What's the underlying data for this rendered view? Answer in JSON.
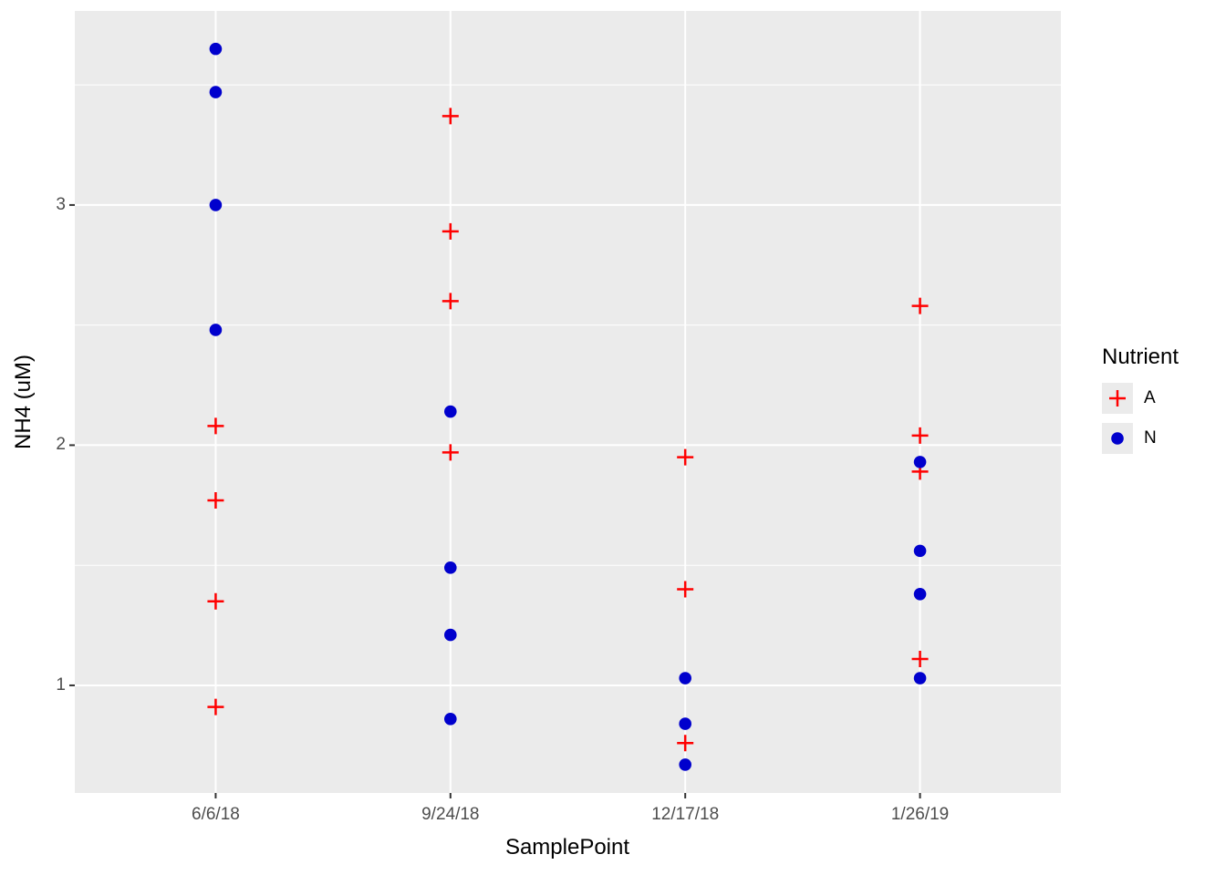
{
  "chart_data": {
    "type": "scatter",
    "title": "",
    "xlabel": "SamplePoint",
    "ylabel": "NH4 (uM)",
    "categories": [
      "6/6/18",
      "9/24/18",
      "12/17/18",
      "1/26/19"
    ],
    "y_ticks": [
      1,
      2,
      3
    ],
    "y_minor_ticks": [
      1.5,
      2.5,
      3.5
    ],
    "y_domain": [
      0.552,
      3.808
    ],
    "x_domain": [
      0.4,
      4.6
    ],
    "grid": "on",
    "legend": {
      "title": "Nutrient",
      "position": "right",
      "entries": [
        {
          "label": "A",
          "marker": "plus",
          "color": "#FF0000"
        },
        {
          "label": "N",
          "marker": "circle",
          "color": "#0000CD"
        }
      ]
    },
    "series": [
      {
        "name": "A",
        "marker": "plus",
        "color": "#FF0000",
        "points": [
          {
            "x": "6/6/18",
            "y": 2.08
          },
          {
            "x": "6/6/18",
            "y": 1.77
          },
          {
            "x": "6/6/18",
            "y": 1.35
          },
          {
            "x": "6/6/18",
            "y": 0.91
          },
          {
            "x": "9/24/18",
            "y": 3.37
          },
          {
            "x": "9/24/18",
            "y": 2.89
          },
          {
            "x": "9/24/18",
            "y": 2.6
          },
          {
            "x": "9/24/18",
            "y": 1.97
          },
          {
            "x": "12/17/18",
            "y": 1.95
          },
          {
            "x": "12/17/18",
            "y": 1.4
          },
          {
            "x": "12/17/18",
            "y": 0.76
          },
          {
            "x": "1/26/19",
            "y": 2.58
          },
          {
            "x": "1/26/19",
            "y": 2.04
          },
          {
            "x": "1/26/19",
            "y": 1.89
          },
          {
            "x": "1/26/19",
            "y": 1.11
          }
        ]
      },
      {
        "name": "N",
        "marker": "circle",
        "color": "#0000CD",
        "points": [
          {
            "x": "6/6/18",
            "y": 3.65
          },
          {
            "x": "6/6/18",
            "y": 3.47
          },
          {
            "x": "6/6/18",
            "y": 3.0
          },
          {
            "x": "6/6/18",
            "y": 2.48
          },
          {
            "x": "9/24/18",
            "y": 2.14
          },
          {
            "x": "9/24/18",
            "y": 1.49
          },
          {
            "x": "9/24/18",
            "y": 1.21
          },
          {
            "x": "9/24/18",
            "y": 0.86
          },
          {
            "x": "12/17/18",
            "y": 1.03
          },
          {
            "x": "12/17/18",
            "y": 0.84
          },
          {
            "x": "12/17/18",
            "y": 0.67
          },
          {
            "x": "1/26/19",
            "y": 1.93
          },
          {
            "x": "1/26/19",
            "y": 1.56
          },
          {
            "x": "1/26/19",
            "y": 1.38
          },
          {
            "x": "1/26/19",
            "y": 1.03
          }
        ]
      }
    ]
  },
  "colors": {
    "panel_bg": "#EBEBEB",
    "grid": "#FFFFFF",
    "tick_mark": "#333333",
    "tick_label": "#4D4D4D"
  }
}
